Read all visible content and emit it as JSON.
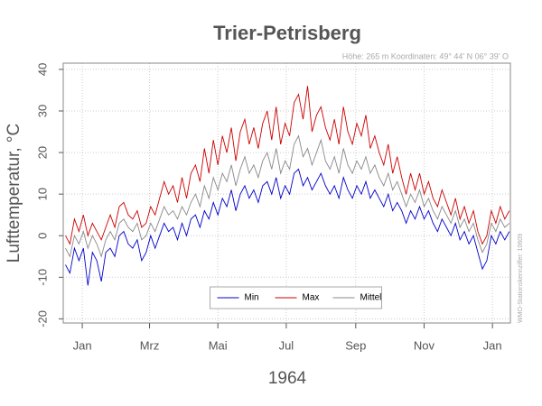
{
  "chart_data": {
    "type": "line",
    "title": "Trier-Petrisberg",
    "subtitle": "Höhe: 265 m   Koordinaten: 49° 44' N  06° 39' O",
    "side_note": "WMO-Stationskennziffer: 10609",
    "xlabel": "1964",
    "ylabel": "Lufttemperatur, °C",
    "x": [
      -15,
      -11,
      -7,
      -3,
      1,
      5,
      9,
      13,
      17,
      21,
      25,
      29,
      33,
      37,
      41,
      45,
      49,
      53,
      57,
      61,
      65,
      69,
      73,
      77,
      81,
      85,
      89,
      93,
      97,
      101,
      105,
      109,
      113,
      117,
      121,
      125,
      129,
      133,
      137,
      141,
      145,
      149,
      153,
      157,
      161,
      165,
      169,
      173,
      177,
      181,
      185,
      189,
      193,
      197,
      201,
      205,
      209,
      213,
      217,
      221,
      225,
      229,
      233,
      237,
      241,
      245,
      249,
      253,
      257,
      261,
      265,
      269,
      273,
      277,
      281,
      285,
      289,
      293,
      297,
      301,
      305,
      309,
      313,
      317,
      321,
      325,
      329,
      333,
      337,
      341,
      345,
      349,
      353,
      357,
      361,
      365,
      369,
      373,
      377,
      381
    ],
    "series": [
      {
        "name": "Min",
        "color": "#0000cc",
        "values": [
          -7,
          -9,
          -3,
          -6,
          -3,
          -12,
          -4,
          -6,
          -11,
          -4,
          -3,
          -5,
          0,
          1,
          -2,
          -3,
          -1,
          -6,
          -4,
          0,
          -3,
          0,
          3,
          1,
          2,
          -1,
          3,
          0,
          4,
          5,
          2,
          6,
          4,
          8,
          5,
          9,
          7,
          11,
          6,
          10,
          12,
          9,
          11,
          8,
          12,
          13,
          10,
          14,
          9,
          12,
          10,
          15,
          16,
          12,
          14,
          11,
          13,
          15,
          12,
          10,
          12,
          9,
          14,
          11,
          9,
          12,
          10,
          13,
          9,
          11,
          9,
          7,
          10,
          6,
          8,
          6,
          3,
          6,
          4,
          7,
          4,
          6,
          3,
          1,
          4,
          2,
          0,
          3,
          -1,
          1,
          -2,
          0,
          -4,
          -8,
          -6,
          0,
          -2,
          1,
          -1,
          1
        ]
      },
      {
        "name": "Max",
        "color": "#cc0000",
        "values": [
          0,
          -2,
          4,
          1,
          5,
          0,
          3,
          1,
          -1,
          2,
          5,
          2,
          7,
          8,
          5,
          4,
          6,
          2,
          3,
          7,
          5,
          9,
          13,
          10,
          12,
          8,
          14,
          9,
          15,
          17,
          13,
          21,
          15,
          23,
          17,
          24,
          20,
          26,
          18,
          25,
          28,
          22,
          26,
          21,
          27,
          30,
          23,
          31,
          22,
          27,
          24,
          32,
          34,
          28,
          36,
          25,
          29,
          31,
          26,
          23,
          28,
          22,
          31,
          25,
          22,
          27,
          24,
          29,
          21,
          24,
          20,
          17,
          22,
          15,
          19,
          14,
          10,
          15,
          11,
          15,
          10,
          13,
          9,
          7,
          11,
          8,
          5,
          9,
          4,
          7,
          3,
          6,
          1,
          -2,
          0,
          6,
          3,
          7,
          4,
          6
        ]
      },
      {
        "name": "Mittel",
        "color": "#888888",
        "values": [
          -3,
          -5,
          0,
          -2,
          1,
          -3,
          0,
          -2,
          -5,
          -1,
          1,
          -1,
          3,
          4,
          2,
          1,
          3,
          -1,
          0,
          3,
          1,
          4,
          7,
          5,
          6,
          4,
          7,
          5,
          8,
          10,
          7,
          12,
          9,
          14,
          11,
          15,
          13,
          17,
          12,
          16,
          19,
          15,
          17,
          14,
          18,
          20,
          16,
          21,
          15,
          18,
          16,
          22,
          24,
          19,
          21,
          17,
          20,
          23,
          18,
          16,
          19,
          15,
          21,
          17,
          15,
          18,
          16,
          19,
          15,
          17,
          14,
          12,
          15,
          11,
          13,
          10,
          7,
          10,
          8,
          11,
          7,
          9,
          6,
          4,
          7,
          5,
          3,
          6,
          2,
          4,
          1,
          3,
          -1,
          -4,
          -2,
          3,
          1,
          4,
          2,
          3
        ]
      }
    ],
    "xlim": [
      -17,
      382
    ],
    "xticks": [
      {
        "value": 0,
        "label": "Jan"
      },
      {
        "value": 60,
        "label": "Mrz"
      },
      {
        "value": 121,
        "label": "Mai"
      },
      {
        "value": 182,
        "label": "Jul"
      },
      {
        "value": 244,
        "label": "Sep"
      },
      {
        "value": 305,
        "label": "Nov"
      },
      {
        "value": 366,
        "label": "Jan"
      }
    ],
    "ylim": [
      -21,
      41.5
    ],
    "yticks": [
      -20,
      -10,
      0,
      10,
      20,
      30,
      40
    ],
    "grid": true,
    "legend": "bottom"
  }
}
